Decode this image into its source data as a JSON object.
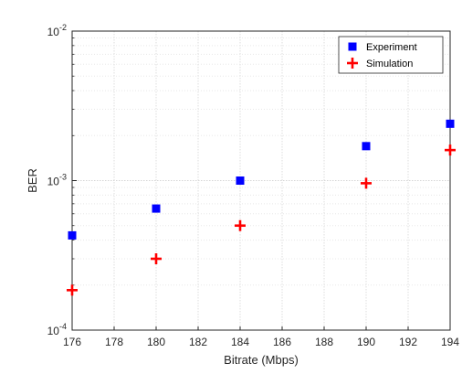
{
  "chart_data": {
    "type": "scatter",
    "xlabel": "Bitrate (Mbps)",
    "ylabel": "BER",
    "xlim": [
      176,
      194
    ],
    "ylim": [
      0.0001,
      0.01
    ],
    "yscale": "log",
    "grid": true,
    "minor_grid": true,
    "legend_position": "top-right",
    "x_ticks": [
      "176",
      "178",
      "180",
      "182",
      "184",
      "186",
      "188",
      "190",
      "192",
      "194"
    ],
    "y_ticks": [
      {
        "value": 0.0001,
        "base": "10",
        "exp": "-4"
      },
      {
        "value": 0.001,
        "base": "10",
        "exp": "-3"
      },
      {
        "value": 0.01,
        "base": "10",
        "exp": "-2"
      }
    ],
    "series": [
      {
        "name": "Experiment",
        "marker": "square",
        "color": "#0000ff",
        "x": [
          176,
          180,
          184,
          190,
          194
        ],
        "y": [
          0.00043,
          0.00065,
          0.001,
          0.0017,
          0.0024
        ]
      },
      {
        "name": "Simulation",
        "marker": "plus",
        "color": "#ff0000",
        "x": [
          176,
          180,
          184,
          190,
          194
        ],
        "y": [
          0.000185,
          0.0003,
          0.0005,
          0.00096,
          0.0016
        ]
      }
    ]
  }
}
